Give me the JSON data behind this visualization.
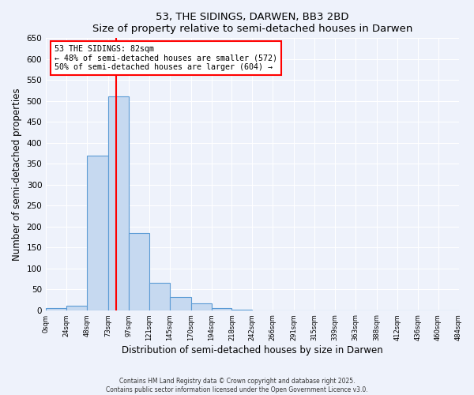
{
  "title": "53, THE SIDINGS, DARWEN, BB3 2BD",
  "subtitle": "Size of property relative to semi-detached houses in Darwen",
  "xlabel": "Distribution of semi-detached houses by size in Darwen",
  "ylabel": "Number of semi-detached properties",
  "bar_edges": [
    0,
    24,
    48,
    73,
    97,
    121,
    145,
    170,
    194,
    218,
    242,
    266,
    291,
    315,
    339,
    363,
    388,
    412,
    436,
    460,
    484
  ],
  "bar_heights": [
    5,
    11,
    370,
    510,
    185,
    65,
    32,
    17,
    5,
    2,
    0,
    0,
    0,
    0,
    0,
    0,
    0,
    0,
    0,
    0
  ],
  "bar_color": "#c6d9f0",
  "bar_edge_color": "#5b9bd5",
  "vline_x": 82,
  "vline_color": "red",
  "annotation_title": "53 THE SIDINGS: 82sqm",
  "annotation_line1": "← 48% of semi-detached houses are smaller (572)",
  "annotation_line2": "50% of semi-detached houses are larger (604) →",
  "annotation_box_color": "red",
  "ylim": [
    0,
    650
  ],
  "yticks": [
    0,
    50,
    100,
    150,
    200,
    250,
    300,
    350,
    400,
    450,
    500,
    550,
    600,
    650
  ],
  "xtick_labels": [
    "0sqm",
    "24sqm",
    "48sqm",
    "73sqm",
    "97sqm",
    "121sqm",
    "145sqm",
    "170sqm",
    "194sqm",
    "218sqm",
    "242sqm",
    "266sqm",
    "291sqm",
    "315sqm",
    "339sqm",
    "363sqm",
    "388sqm",
    "412sqm",
    "436sqm",
    "460sqm",
    "484sqm"
  ],
  "footnote1": "Contains HM Land Registry data © Crown copyright and database right 2025.",
  "footnote2": "Contains public sector information licensed under the Open Government Licence v3.0.",
  "bg_color": "#eef2fb",
  "grid_color": "#ffffff"
}
